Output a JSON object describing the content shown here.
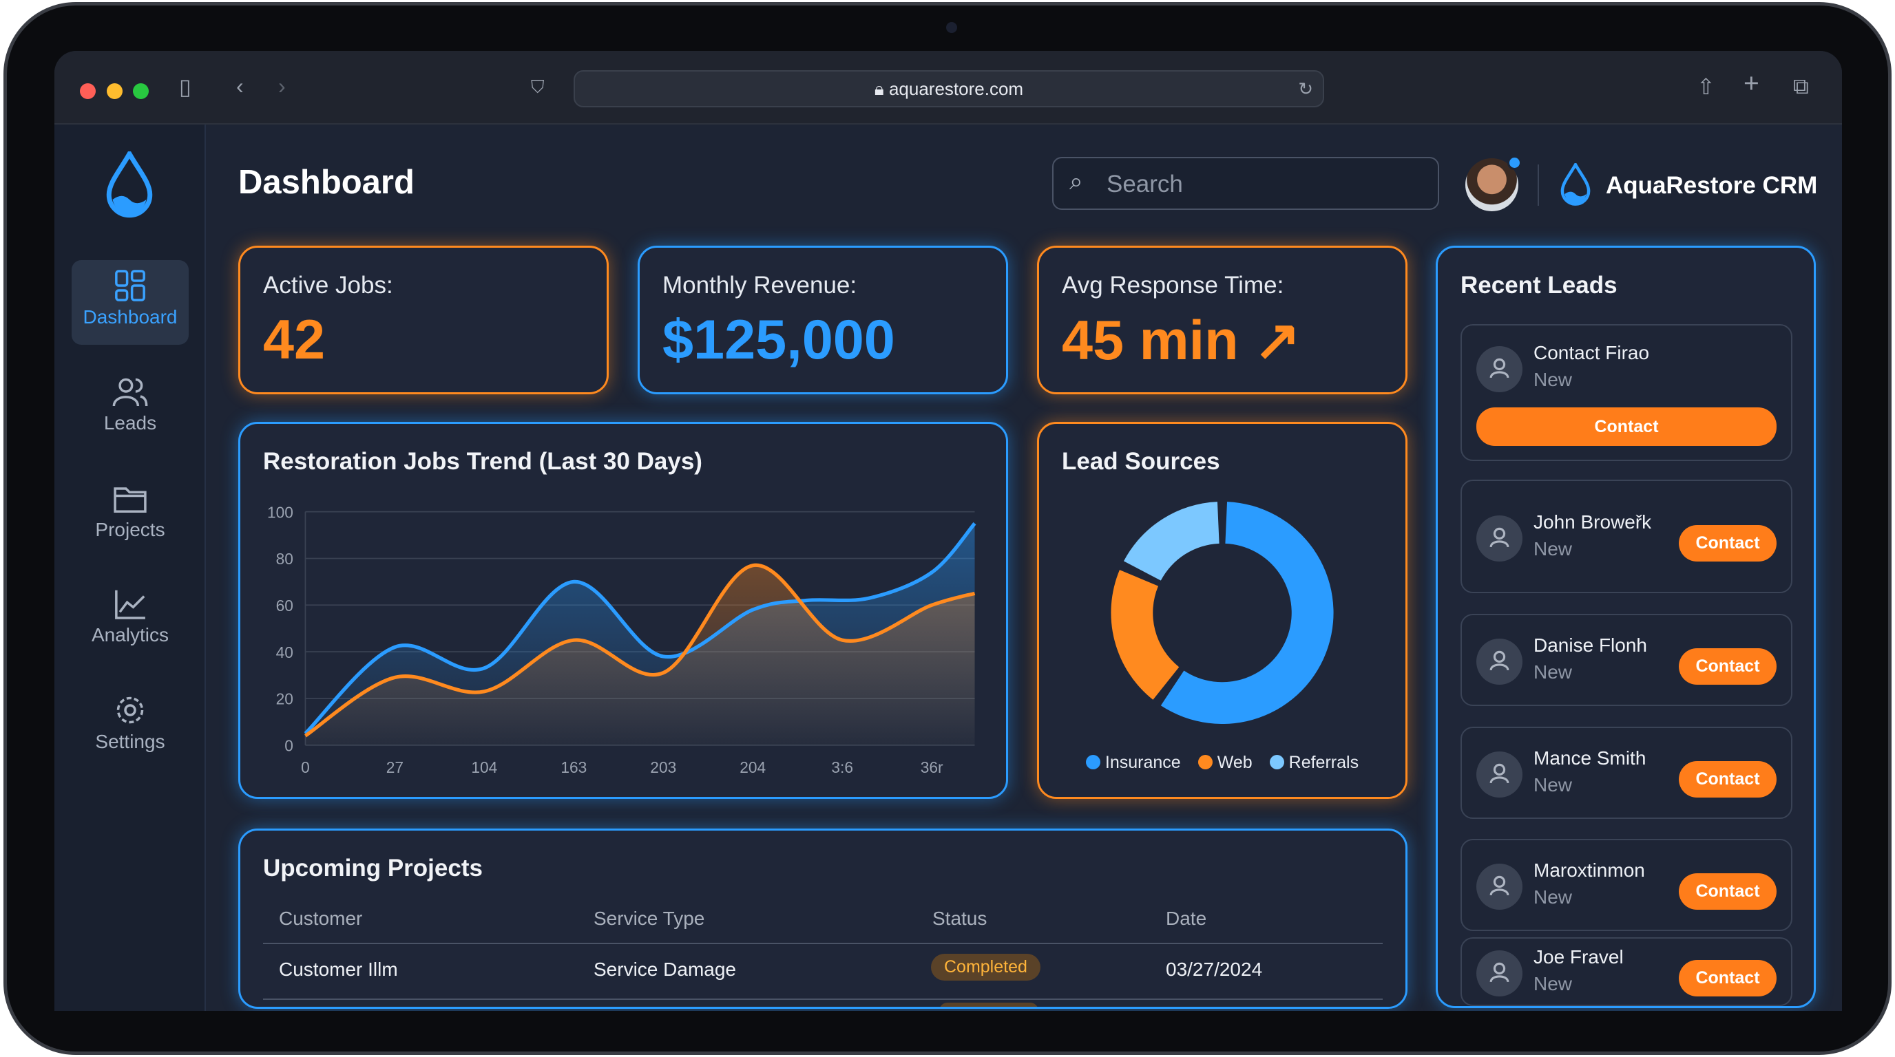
{
  "browser": {
    "url": "aquarestore.com"
  },
  "sidebar": {
    "items": [
      {
        "label": "Dashboard",
        "icon": "dashboard-icon",
        "active": true
      },
      {
        "label": "Leads",
        "icon": "users-icon"
      },
      {
        "label": "Projects",
        "icon": "folder-icon"
      },
      {
        "label": "Analytics",
        "icon": "chart-icon"
      },
      {
        "label": "Settings",
        "icon": "gear-icon"
      }
    ]
  },
  "header": {
    "title": "Dashboard",
    "search_placeholder": "Search",
    "brand": "AquaRestore CRM"
  },
  "kpis": [
    {
      "label": "Active Jobs:",
      "value": "42"
    },
    {
      "label": "Monthly Revenue:",
      "value": "$125,000"
    },
    {
      "label": "Avg Response Time:",
      "value": "45 min ↗"
    }
  ],
  "colors": {
    "orange": "#ff8a1f",
    "blue": "#2b9cff",
    "light_blue": "#7cc8ff"
  },
  "chart_data": [
    {
      "type": "line",
      "title": "Restoration Jobs Trend (Last 30 Days)",
      "xlabel": "",
      "ylabel": "",
      "ylim": [
        0,
        100
      ],
      "yticks": [
        "0",
        "20",
        "40",
        "60",
        "80",
        "100"
      ],
      "categories": [
        "0",
        "27",
        "104",
        "163",
        "203",
        "204",
        "3:6",
        "36r"
      ],
      "series": [
        {
          "name": "blue",
          "color": "#2b9cff",
          "points": [
            [
              0,
              5
            ],
            [
              1,
              42
            ],
            [
              2,
              33
            ],
            [
              3,
              70
            ],
            [
              4,
              38
            ],
            [
              5,
              58
            ],
            [
              5.6,
              62
            ],
            [
              6.3,
              63
            ],
            [
              7,
              74
            ],
            [
              7.48,
              95
            ]
          ]
        },
        {
          "name": "orange",
          "color": "#ff8a1f",
          "points": [
            [
              0,
              4
            ],
            [
              1,
              29
            ],
            [
              2,
              23
            ],
            [
              3,
              45
            ],
            [
              4,
              31
            ],
            [
              5,
              77
            ],
            [
              6,
              45
            ],
            [
              7,
              60
            ],
            [
              7.48,
              65
            ]
          ]
        }
      ],
      "grid": true
    },
    {
      "type": "pie",
      "title": "Lead Sources",
      "labels": [
        "Insurance",
        "Web",
        "Referrals"
      ],
      "values": [
        60,
        22,
        18
      ],
      "colors": [
        "#2b9cff",
        "#ff8a1f",
        "#7cc8ff"
      ],
      "legend": "bottom"
    }
  ],
  "projects": {
    "title": "Upcoming Projects",
    "columns": [
      "Customer",
      "Service Type",
      "Status",
      "Date"
    ],
    "rows": [
      {
        "customer": "Customer Illm",
        "service": "Service Damage",
        "status": "Completed",
        "date": "03/27/2024"
      }
    ]
  },
  "leads": {
    "title": "Recent Leads",
    "button": "Contact",
    "items": [
      {
        "name": "Contact Firao",
        "status": "New"
      },
      {
        "name": "John Broweřk",
        "status": "New"
      },
      {
        "name": "Danise Flonh",
        "status": "New"
      },
      {
        "name": "Mance Smith",
        "status": "New"
      },
      {
        "name": "Maroxtinmon",
        "status": "New"
      },
      {
        "name": "Joe Fravel",
        "status": "New"
      }
    ]
  }
}
